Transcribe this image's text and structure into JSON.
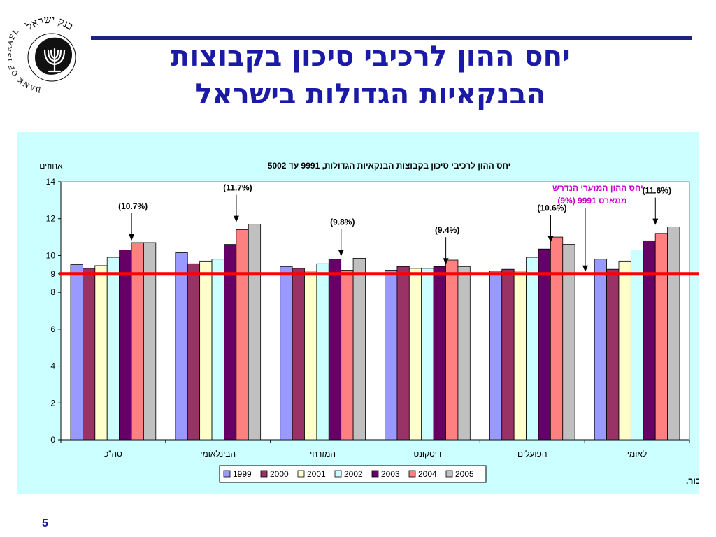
{
  "slide": {
    "title_line1": "יחס ההון לרכיבי סיכון בקבוצות",
    "title_line2": "הבנקאיות הגדולות בישראל",
    "page_number": "5",
    "logo_text_hebrew": "בנק ישראל",
    "logo_text_english": "BANK OF ISRAEL"
  },
  "chart_data": {
    "type": "bar",
    "title": "יחס ההון לרכיבי סיכון בקבוצות הבנקאיות הגדולות, 9991 עד 5002",
    "ylabel": "אחוזים",
    "ylim": [
      0,
      14
    ],
    "yticks": [
      0,
      2,
      4,
      6,
      8,
      10,
      12,
      14
    ],
    "extra_ytick": 9,
    "grid": false,
    "legend_position": "bottom",
    "categories": [
      "סה\"כ",
      "הבינלאומי",
      "המזרחי",
      "דיסקונט",
      "הפועלים",
      "לאומי"
    ],
    "series": [
      {
        "name": "1999",
        "color": "#9999ff",
        "values": [
          9.5,
          10.15,
          9.4,
          9.2,
          9.15,
          9.8
        ]
      },
      {
        "name": "2000",
        "color": "#993366",
        "values": [
          9.3,
          9.55,
          9.3,
          9.4,
          9.25,
          9.25
        ]
      },
      {
        "name": "2001",
        "color": "#ffffcc",
        "values": [
          9.45,
          9.7,
          9.15,
          9.3,
          9.15,
          9.7
        ]
      },
      {
        "name": "2002",
        "color": "#ccffff",
        "values": [
          9.9,
          9.8,
          9.55,
          9.3,
          9.9,
          10.3
        ]
      },
      {
        "name": "2003",
        "color": "#660066",
        "values": [
          10.3,
          10.6,
          9.8,
          9.4,
          10.35,
          10.8
        ]
      },
      {
        "name": "2004",
        "color": "#ff8080",
        "values": [
          10.7,
          11.4,
          9.2,
          9.75,
          11.0,
          11.2
        ]
      },
      {
        "name": "2005",
        "color": "#c0c0c0",
        "values": [
          10.7,
          11.7,
          9.85,
          9.4,
          10.6,
          11.55
        ]
      }
    ],
    "threshold": {
      "value": 9,
      "color": "#ff0000"
    },
    "annotations": [
      {
        "text": "(10.7%)",
        "category_index": 0,
        "value": 10.7
      },
      {
        "text": "(11.7%)",
        "category_index": 1,
        "value": 11.7
      },
      {
        "text": "(9.8%)",
        "category_index": 2,
        "value": 9.85
      },
      {
        "text": "(9.4%)",
        "category_index": 3,
        "value": 9.4
      },
      {
        "text": "(10.6%)",
        "category_index": 4,
        "value": 10.6
      },
      {
        "text": "(11.6%)",
        "category_index": 5,
        "value": 11.55
      }
    ],
    "threshold_note_line1": "יחס ההון המזערי הנדרש",
    "threshold_note_line2": "ממארס 9991 (9%)",
    "threshold_note_color": "#cc00cc",
    "source": "המקור: דוחות כספיים לציבור."
  }
}
